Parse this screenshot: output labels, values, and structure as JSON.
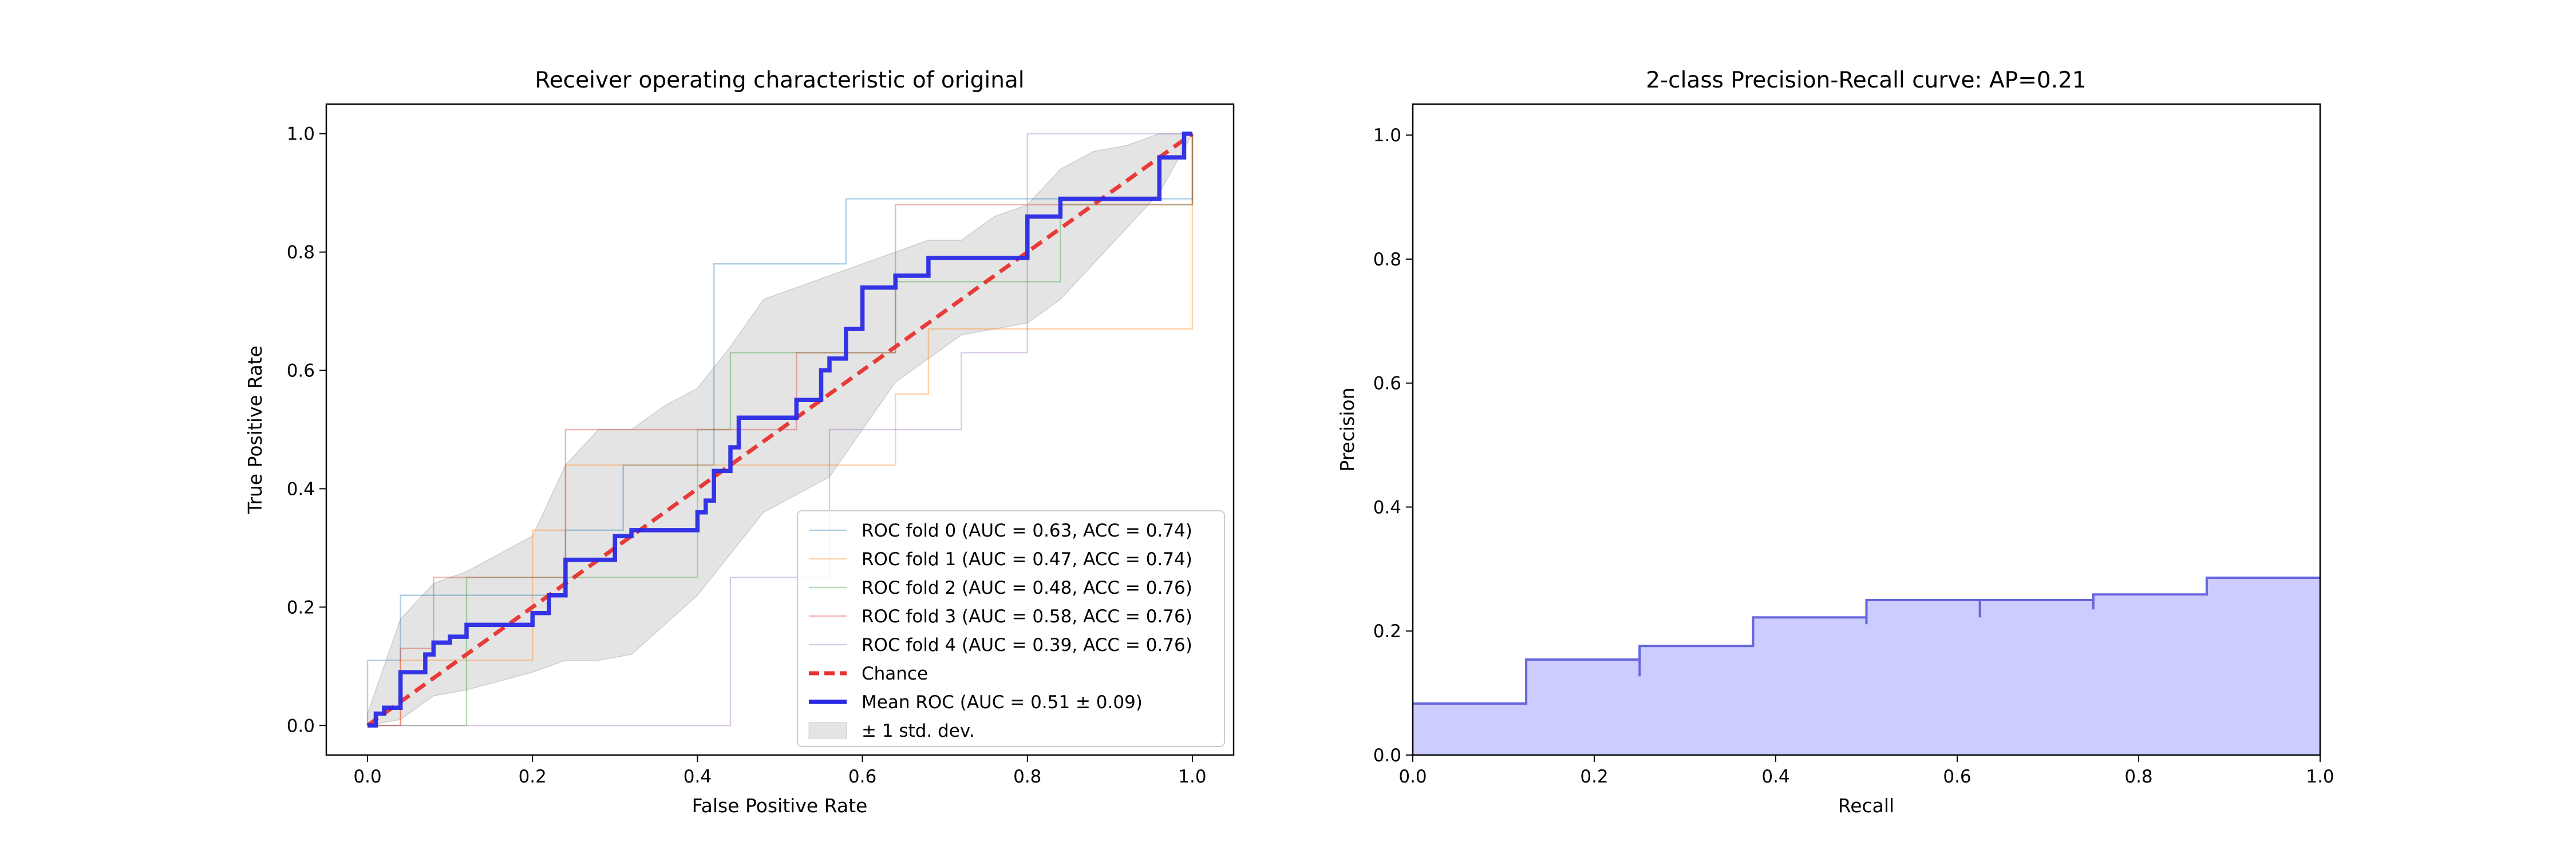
{
  "chart_data": [
    {
      "type": "line",
      "title": "Receiver operating characteristic of original",
      "xlabel": "False Positive Rate",
      "ylabel": "True Positive Rate",
      "xlim": [
        -0.05,
        1.05
      ],
      "ylim": [
        -0.05,
        1.05
      ],
      "xticks": [
        "0.0",
        "0.2",
        "0.4",
        "0.6",
        "0.8",
        "1.0"
      ],
      "yticks": [
        "0.0",
        "0.2",
        "0.4",
        "0.6",
        "0.8",
        "1.0"
      ],
      "legend_position": "lower-right",
      "grid": false,
      "series": [
        {
          "name": "ROC fold 0 (AUC = 0.63, ACC = 0.74)",
          "color": "#1f77b4",
          "x": [
            0,
            0,
            0.04,
            0.04,
            0.24,
            0.24,
            0.31,
            0.31,
            0.42,
            0.42,
            0.46,
            0.46,
            0.58,
            0.58,
            0.8,
            0.8,
            1,
            1
          ],
          "y": [
            0,
            0.11,
            0.11,
            0.22,
            0.22,
            0.33,
            0.33,
            0.44,
            0.44,
            0.78,
            0.78,
            0.78,
            0.78,
            0.89,
            0.89,
            0.89,
            0.89,
            1
          ]
        },
        {
          "name": "ROC fold 1 (AUC = 0.47, ACC = 0.74)",
          "color": "#ff7f0e",
          "x": [
            0,
            0.04,
            0.04,
            0.2,
            0.2,
            0.24,
            0.24,
            0.44,
            0.44,
            0.64,
            0.64,
            0.68,
            0.68,
            0.96,
            0.96,
            1,
            1
          ],
          "y": [
            0,
            0,
            0.11,
            0.11,
            0.33,
            0.33,
            0.44,
            0.44,
            0.44,
            0.44,
            0.56,
            0.56,
            0.67,
            0.67,
            0.67,
            0.67,
            1
          ]
        },
        {
          "name": "ROC fold 2 (AUC = 0.48, ACC = 0.76)",
          "color": "#2ca02c",
          "x": [
            0,
            0.12,
            0.12,
            0.32,
            0.32,
            0.4,
            0.4,
            0.44,
            0.44,
            0.48,
            0.48,
            0.64,
            0.64,
            0.84,
            0.84,
            1,
            1
          ],
          "y": [
            0,
            0,
            0.25,
            0.25,
            0.25,
            0.25,
            0.5,
            0.5,
            0.63,
            0.63,
            0.63,
            0.63,
            0.75,
            0.75,
            0.88,
            0.88,
            1
          ]
        },
        {
          "name": "ROC fold 3 (AUC = 0.58, ACC = 0.76)",
          "color": "#d62728",
          "x": [
            0,
            0.04,
            0.04,
            0.08,
            0.08,
            0.24,
            0.24,
            0.52,
            0.52,
            0.64,
            0.64,
            1,
            1
          ],
          "y": [
            0,
            0,
            0.13,
            0.13,
            0.25,
            0.25,
            0.5,
            0.5,
            0.63,
            0.63,
            0.88,
            0.88,
            1
          ]
        },
        {
          "name": "ROC fold 4 (AUC = 0.39, ACC = 0.76)",
          "color": "#9467bd",
          "x": [
            0,
            0.44,
            0.44,
            0.56,
            0.56,
            0.72,
            0.72,
            0.8,
            0.8,
            1,
            1
          ],
          "y": [
            0,
            0,
            0.25,
            0.25,
            0.5,
            0.5,
            0.63,
            0.63,
            1,
            1,
            1
          ]
        },
        {
          "name": "Chance",
          "color": "#e8312f",
          "style": "dashed",
          "x": [
            0,
            1
          ],
          "y": [
            0,
            1
          ]
        },
        {
          "name": "Mean ROC (AUC = 0.51 ± 0.09)",
          "color": "#2a2ae6",
          "x": [
            0,
            0.01,
            0.01,
            0.02,
            0.02,
            0.03,
            0.03,
            0.04,
            0.04,
            0.06,
            0.06,
            0.07,
            0.07,
            0.08,
            0.08,
            0.1,
            0.1,
            0.12,
            0.12,
            0.2,
            0.2,
            0.22,
            0.22,
            0.24,
            0.24,
            0.28,
            0.28,
            0.3,
            0.3,
            0.32,
            0.32,
            0.4,
            0.4,
            0.41,
            0.41,
            0.42,
            0.42,
            0.44,
            0.44,
            0.45,
            0.45,
            0.46,
            0.46,
            0.52,
            0.52,
            0.55,
            0.55,
            0.56,
            0.56,
            0.58,
            0.58,
            0.6,
            0.6,
            0.64,
            0.64,
            0.68,
            0.68,
            0.72,
            0.72,
            0.8,
            0.8,
            0.84,
            0.84,
            0.96,
            0.96,
            0.99,
            0.99,
            1
          ],
          "y": [
            0,
            0,
            0.02,
            0.02,
            0.03,
            0.03,
            0.03,
            0.03,
            0.09,
            0.09,
            0.09,
            0.09,
            0.12,
            0.12,
            0.14,
            0.14,
            0.15,
            0.15,
            0.17,
            0.17,
            0.19,
            0.19,
            0.22,
            0.22,
            0.28,
            0.28,
            0.28,
            0.28,
            0.32,
            0.32,
            0.33,
            0.33,
            0.36,
            0.36,
            0.38,
            0.38,
            0.43,
            0.43,
            0.47,
            0.47,
            0.52,
            0.52,
            0.52,
            0.52,
            0.55,
            0.55,
            0.6,
            0.6,
            0.62,
            0.62,
            0.67,
            0.67,
            0.74,
            0.74,
            0.76,
            0.76,
            0.79,
            0.79,
            0.79,
            0.79,
            0.86,
            0.86,
            0.89,
            0.89,
            0.96,
            0.96,
            1,
            1
          ]
        }
      ],
      "std_band": {
        "name": "± 1 std. dev.",
        "x": [
          0,
          0.04,
          0.08,
          0.12,
          0.2,
          0.24,
          0.28,
          0.32,
          0.36,
          0.4,
          0.44,
          0.48,
          0.52,
          0.56,
          0.6,
          0.64,
          0.68,
          0.72,
          0.76,
          0.8,
          0.84,
          0.88,
          0.92,
          0.96,
          1
        ],
        "upper": [
          0.02,
          0.18,
          0.24,
          0.26,
          0.32,
          0.44,
          0.5,
          0.5,
          0.54,
          0.57,
          0.64,
          0.72,
          0.74,
          0.76,
          0.78,
          0.8,
          0.82,
          0.82,
          0.86,
          0.88,
          0.94,
          0.97,
          0.98,
          1,
          1
        ],
        "lower": [
          0,
          0.01,
          0.05,
          0.06,
          0.09,
          0.11,
          0.11,
          0.12,
          0.17,
          0.22,
          0.29,
          0.36,
          0.39,
          0.42,
          0.5,
          0.58,
          0.62,
          0.66,
          0.67,
          0.68,
          0.72,
          0.78,
          0.84,
          0.9,
          1
        ]
      },
      "band_color": "#bbbbbb"
    },
    {
      "type": "area",
      "title": "2-class Precision-Recall curve: AP=0.21",
      "xlabel": "Recall",
      "ylabel": "Precision",
      "xlim": [
        0,
        1
      ],
      "ylim": [
        0,
        1.05
      ],
      "xticks": [
        "0.0",
        "0.2",
        "0.4",
        "0.6",
        "0.8",
        "1.0"
      ],
      "yticks": [
        "0.0",
        "0.2",
        "0.4",
        "0.6",
        "0.8",
        "1.0"
      ],
      "step": "post",
      "color": "#6666dd",
      "fill_color": "#ccccff",
      "x": [
        0,
        0.125,
        0.25,
        0.375,
        0.5,
        0.625,
        0.75,
        0.875,
        1.0
      ],
      "y": [
        0.083,
        0.154,
        0.176,
        0.222,
        0.25,
        0.25,
        0.259,
        0.286,
        0.286
      ],
      "dips": [
        {
          "x": 0.25,
          "y": 0.127
        },
        {
          "x": 0.5,
          "y": 0.211
        },
        {
          "x": 0.625,
          "y": 0.222
        },
        {
          "x": 0.75,
          "y": 0.235
        }
      ]
    }
  ]
}
